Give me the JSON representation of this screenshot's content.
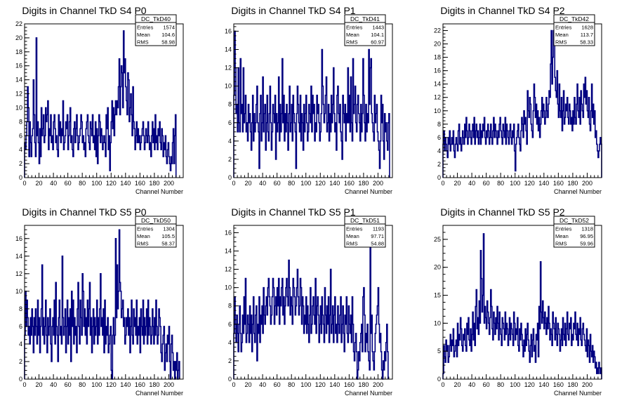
{
  "chart_data": [
    {
      "type": "histogram",
      "title": "Digits in Channel TkD S4 P0",
      "xlabel": "Channel Number",
      "xlim": [
        0,
        220
      ],
      "ylim": [
        0,
        22
      ],
      "xticks": [
        0,
        20,
        40,
        60,
        80,
        100,
        120,
        140,
        160,
        180,
        200
      ],
      "yticks": [
        0,
        2,
        4,
        6,
        8,
        10,
        12,
        14,
        16,
        18,
        20,
        22
      ],
      "stats": {
        "name": "DC_TkD40",
        "entries": "1574",
        "mean": "104.6",
        "rms": "58.98"
      },
      "values": [
        5,
        4,
        6,
        8,
        13,
        10,
        3,
        8,
        5,
        3,
        6,
        7,
        14,
        9,
        5,
        3,
        20,
        6,
        8,
        5,
        2,
        7,
        3,
        10,
        6,
        7,
        9,
        5,
        6,
        10,
        8,
        9,
        11,
        4,
        7,
        6,
        9,
        5,
        6,
        4,
        8,
        9,
        7,
        5,
        6,
        4,
        3,
        9,
        6,
        8,
        5,
        7,
        6,
        11,
        4,
        5,
        6,
        8,
        7,
        9,
        4,
        6,
        8,
        10,
        5,
        6,
        4,
        3,
        7,
        8,
        5,
        7,
        9,
        6,
        4,
        5,
        6,
        7,
        9,
        8,
        5,
        6,
        4,
        5,
        3,
        7,
        8,
        9,
        6,
        5,
        4,
        8,
        7,
        6,
        9,
        5,
        6,
        4,
        8,
        3,
        7,
        2,
        6,
        9,
        8,
        5,
        7,
        6,
        4,
        5,
        6,
        5,
        3,
        9,
        7,
        10,
        4,
        6,
        1,
        5,
        8,
        11,
        7,
        10,
        6,
        9,
        11,
        9,
        11,
        10,
        13,
        17,
        9,
        13,
        16,
        15,
        10,
        21,
        15,
        17,
        13,
        11,
        9,
        15,
        14,
        8,
        10,
        12,
        9,
        6,
        13,
        8,
        7,
        4,
        6,
        8,
        5,
        7,
        5,
        6,
        4,
        5,
        6,
        7,
        8,
        6,
        4,
        5,
        7,
        6,
        5,
        8,
        6,
        4,
        5,
        3,
        6,
        8,
        5,
        7,
        4,
        9,
        5,
        6,
        4,
        7,
        6,
        8,
        5,
        4,
        7,
        6,
        3,
        5,
        4,
        6,
        3,
        2,
        4,
        5,
        3,
        2,
        1,
        3,
        2,
        5,
        7,
        2,
        6,
        9
      ]
    },
    {
      "type": "histogram",
      "title": "Digits in Channel TkD S4 P1",
      "xlabel": "Channel Number",
      "xlim": [
        0,
        220
      ],
      "ylim": [
        0,
        16.8
      ],
      "xticks": [
        0,
        20,
        40,
        60,
        80,
        100,
        120,
        140,
        160,
        180,
        200
      ],
      "yticks": [
        0,
        2,
        4,
        6,
        8,
        10,
        12,
        14,
        16
      ],
      "stats": {
        "name": "DC_TkD41",
        "entries": "1443",
        "mean": "104.1",
        "rms": "60.97"
      },
      "values": [
        9,
        16,
        12,
        7,
        8,
        5,
        12,
        6,
        5,
        13,
        7,
        8,
        5,
        12,
        6,
        7,
        9,
        5,
        6,
        4,
        8,
        6,
        7,
        5,
        3,
        6,
        9,
        4,
        7,
        5,
        6,
        8,
        10,
        6,
        5,
        1,
        7,
        9,
        4,
        6,
        11,
        5,
        7,
        8,
        3,
        6,
        9,
        5,
        4,
        7,
        10,
        6,
        3,
        5,
        8,
        7,
        6,
        9,
        2,
        7,
        5,
        6,
        11,
        4,
        8,
        5,
        7,
        13,
        6,
        9,
        4,
        7,
        5,
        8,
        6,
        3,
        7,
        10,
        5,
        6,
        8,
        4,
        9,
        7,
        6,
        5,
        1,
        7,
        10,
        8,
        6,
        5,
        9,
        4,
        7,
        6,
        3,
        8,
        5,
        7,
        9,
        6,
        4,
        5,
        8,
        7,
        6,
        10,
        5,
        9,
        7,
        8,
        4,
        6,
        5,
        9,
        7,
        8,
        6,
        4,
        5,
        7,
        14,
        10,
        8,
        6,
        7,
        9,
        11,
        5,
        6,
        8,
        4,
        7,
        5,
        9,
        6,
        8,
        12,
        7,
        5,
        6,
        3,
        9,
        10,
        7,
        6,
        8,
        5,
        4,
        2,
        9,
        7,
        6,
        8,
        4,
        7,
        6,
        12,
        6,
        9,
        5,
        11,
        6,
        4,
        13,
        7,
        8,
        10,
        6,
        5,
        8,
        9,
        7,
        6,
        4,
        8,
        5,
        7,
        13,
        9,
        6,
        4,
        8,
        5,
        7,
        6,
        14,
        8,
        12,
        13,
        7,
        6,
        5,
        4,
        9,
        6,
        7,
        8,
        5,
        4,
        3,
        1,
        4,
        9,
        6,
        8,
        4,
        2,
        7,
        5,
        6,
        4,
        3,
        6,
        7
      ]
    },
    {
      "type": "histogram",
      "title": "Digits in Channel TkD S4 P2",
      "xlabel": "Channel Number",
      "xlim": [
        0,
        220
      ],
      "ylim": [
        0,
        23
      ],
      "xticks": [
        0,
        20,
        40,
        60,
        80,
        100,
        120,
        140,
        160,
        180,
        200
      ],
      "yticks": [
        0,
        2,
        4,
        6,
        8,
        10,
        12,
        14,
        16,
        18,
        20,
        22
      ],
      "stats": {
        "name": "DC_TkD42",
        "entries": "1628",
        "mean": "113.7",
        "rms": "58.33"
      },
      "values": [
        5,
        7,
        4,
        6,
        5,
        4,
        3,
        6,
        5,
        7,
        4,
        5,
        6,
        5,
        7,
        4,
        3,
        5,
        6,
        5,
        4,
        7,
        8,
        5,
        6,
        4,
        5,
        7,
        6,
        5,
        8,
        6,
        9,
        7,
        5,
        6,
        8,
        7,
        6,
        5,
        7,
        8,
        6,
        9,
        5,
        7,
        8,
        6,
        7,
        5,
        6,
        8,
        5,
        7,
        6,
        8,
        7,
        9,
        6,
        5,
        7,
        6,
        8,
        7,
        5,
        6,
        8,
        6,
        5,
        7,
        9,
        6,
        8,
        7,
        6,
        5,
        7,
        6,
        8,
        9,
        7,
        6,
        5,
        8,
        7,
        6,
        9,
        5,
        8,
        7,
        6,
        5,
        7,
        8,
        6,
        5,
        7,
        6,
        8,
        4,
        1,
        5,
        6,
        7,
        8,
        6,
        5,
        4,
        7,
        9,
        8,
        6,
        10,
        8,
        9,
        7,
        5,
        13,
        10,
        9,
        12,
        11,
        8,
        7,
        6,
        10,
        14,
        12,
        9,
        11,
        8,
        10,
        7,
        9,
        6,
        8,
        10,
        12,
        9,
        11,
        10,
        8,
        9,
        12,
        10,
        9,
        11,
        13,
        12,
        17,
        22,
        14,
        18,
        22,
        20,
        15,
        13,
        12,
        16,
        11,
        9,
        14,
        10,
        9,
        12,
        7,
        10,
        13,
        8,
        9,
        11,
        10,
        12,
        9,
        8,
        11,
        10,
        8,
        9,
        7,
        10,
        8,
        12,
        9,
        8,
        11,
        14,
        10,
        9,
        12,
        8,
        13,
        11,
        10,
        9,
        14,
        12,
        15,
        11,
        13,
        10,
        9,
        12,
        8,
        7,
        10,
        14,
        9,
        11,
        8,
        10,
        6,
        7,
        5,
        4,
        3,
        4,
        5,
        6,
        5
      ]
    },
    {
      "type": "histogram",
      "title": "Digits in Channel TkD S5 P0",
      "xlabel": "Channel Number",
      "xlim": [
        0,
        220
      ],
      "ylim": [
        0,
        17.5
      ],
      "xticks": [
        0,
        20,
        40,
        60,
        80,
        100,
        120,
        140,
        160,
        180,
        200
      ],
      "yticks": [
        0,
        2,
        4,
        6,
        8,
        10,
        12,
        14,
        16
      ],
      "stats": {
        "name": "DC_TkD50",
        "entries": "1304",
        "mean": "105.5",
        "rms": "58.37"
      },
      "values": [
        5,
        10,
        6,
        9,
        7,
        5,
        6,
        4,
        7,
        5,
        8,
        6,
        3,
        7,
        5,
        8,
        6,
        4,
        9,
        5,
        7,
        3,
        6,
        8,
        13,
        5,
        7,
        4,
        6,
        9,
        5,
        3,
        7,
        5,
        6,
        8,
        4,
        2,
        6,
        7,
        5,
        9,
        4,
        11,
        6,
        5,
        2,
        7,
        9,
        5,
        6,
        4,
        14,
        7,
        5,
        6,
        8,
        3,
        6,
        9,
        4,
        7,
        5,
        8,
        2,
        10,
        6,
        9,
        4,
        7,
        5,
        6,
        3,
        8,
        11,
        6,
        4,
        9,
        7,
        5,
        12,
        10,
        6,
        8,
        5,
        7,
        4,
        9,
        6,
        8,
        11,
        5,
        7,
        3,
        6,
        8,
        4,
        7,
        5,
        6,
        9,
        4,
        7,
        5,
        8,
        12,
        6,
        7,
        5,
        8,
        3,
        9,
        4,
        6,
        5,
        7,
        3,
        4,
        5,
        6,
        1,
        0,
        5,
        7,
        4,
        5,
        16,
        7,
        13,
        8,
        10,
        17,
        11,
        10,
        7,
        8,
        9,
        6,
        7,
        4,
        5,
        7,
        6,
        8,
        5,
        7,
        3,
        6,
        9,
        5,
        4,
        8,
        6,
        7,
        5,
        9,
        4,
        6,
        5,
        7,
        3,
        8,
        6,
        5,
        9,
        4,
        7,
        5,
        6,
        8,
        4,
        9,
        5,
        7,
        6,
        4,
        5,
        8,
        6,
        4,
        7,
        5,
        9,
        6,
        4,
        5,
        8,
        7,
        6,
        3,
        2,
        4,
        5,
        6,
        1,
        3,
        4,
        2,
        5,
        4,
        6,
        2,
        0,
        4,
        5,
        3,
        1,
        2,
        0,
        2,
        1,
        3,
        0,
        1,
        2
      ]
    },
    {
      "type": "histogram",
      "title": "Digits in Channel TkD S5 P1",
      "xlabel": "Channel Number",
      "xlim": [
        0,
        220
      ],
      "ylim": [
        0,
        16.8
      ],
      "xticks": [
        0,
        20,
        40,
        60,
        80,
        100,
        120,
        140,
        160,
        180,
        200
      ],
      "yticks": [
        0,
        2,
        4,
        6,
        8,
        10,
        12,
        14,
        16
      ],
      "stats": {
        "name": "DC_TkD51",
        "entries": "1193",
        "mean": "97.71",
        "rms": "54.88"
      },
      "values": [
        5,
        9,
        6,
        4,
        7,
        5,
        3,
        6,
        8,
        5,
        3,
        4,
        7,
        5,
        9,
        6,
        11,
        4,
        5,
        7,
        6,
        4,
        8,
        5,
        7,
        3,
        6,
        9,
        5,
        4,
        7,
        8,
        2,
        6,
        5,
        9,
        4,
        7,
        6,
        8,
        5,
        10,
        7,
        6,
        8,
        9,
        7,
        10,
        11,
        9,
        8,
        6,
        7,
        9,
        11,
        10,
        6,
        8,
        9,
        7,
        10,
        8,
        11,
        6,
        9,
        8,
        10,
        11,
        7,
        9,
        6,
        8,
        10,
        11,
        9,
        8,
        13,
        10,
        7,
        9,
        8,
        6,
        11,
        10,
        9,
        7,
        8,
        10,
        12,
        9,
        7,
        8,
        11,
        10,
        6,
        9,
        8,
        5,
        7,
        6,
        9,
        5,
        8,
        6,
        4,
        7,
        10,
        5,
        6,
        8,
        9,
        7,
        6,
        11,
        5,
        8,
        9,
        7,
        4,
        6,
        8,
        5,
        9,
        7,
        6,
        4,
        10,
        7,
        5,
        8,
        6,
        9,
        4,
        7,
        12,
        5,
        6,
        8,
        4,
        7,
        9,
        5,
        6,
        4,
        8,
        6,
        5,
        7,
        9,
        4,
        6,
        8,
        5,
        3,
        7,
        6,
        9,
        5,
        4,
        8,
        6,
        5,
        7,
        4,
        9,
        6,
        3,
        2,
        4,
        5,
        3,
        0,
        1,
        3,
        2,
        4,
        5,
        6,
        3,
        9,
        10,
        7,
        3,
        5,
        4,
        6,
        3,
        2,
        1,
        15,
        5,
        7,
        3,
        2,
        1,
        3,
        5,
        6,
        7,
        8,
        10,
        6,
        4,
        5,
        3,
        1,
        0,
        2,
        1,
        3,
        2,
        4,
        6,
        3
      ]
    },
    {
      "type": "histogram",
      "title": "Digits in Channel TkD S5 P2",
      "xlabel": "Channel Number",
      "xlim": [
        0,
        220
      ],
      "ylim": [
        0,
        27.5
      ],
      "xticks": [
        0,
        20,
        40,
        60,
        80,
        100,
        120,
        140,
        160,
        180,
        200
      ],
      "yticks": [
        0,
        5,
        10,
        15,
        20,
        25
      ],
      "stats": {
        "name": "DC_TkD52",
        "entries": "1318",
        "mean": "96.95",
        "rms": "59.96"
      },
      "values": [
        1,
        6,
        4,
        3,
        7,
        5,
        6,
        3,
        4,
        6,
        8,
        5,
        7,
        6,
        9,
        4,
        5,
        6,
        7,
        4,
        10,
        6,
        8,
        7,
        11,
        9,
        6,
        5,
        8,
        7,
        9,
        6,
        5,
        10,
        8,
        11,
        7,
        6,
        9,
        5,
        8,
        12,
        7,
        10,
        6,
        13,
        16,
        9,
        11,
        8,
        14,
        10,
        23,
        18,
        12,
        15,
        26,
        10,
        13,
        11,
        9,
        14,
        12,
        10,
        8,
        11,
        16,
        13,
        9,
        7,
        12,
        10,
        8,
        11,
        9,
        13,
        10,
        7,
        12,
        9,
        8,
        6,
        11,
        10,
        9,
        7,
        12,
        8,
        10,
        9,
        6,
        8,
        11,
        7,
        10,
        9,
        8,
        6,
        12,
        10,
        7,
        9,
        8,
        11,
        6,
        5,
        9,
        7,
        10,
        8,
        6,
        4,
        7,
        5,
        9,
        6,
        8,
        10,
        7,
        5,
        3,
        6,
        8,
        4,
        7,
        9,
        5,
        6,
        3,
        8,
        7,
        10,
        4,
        13,
        9,
        21,
        12,
        10,
        14,
        11,
        9,
        12,
        10,
        8,
        11,
        9,
        13,
        10,
        7,
        9,
        8,
        6,
        12,
        10,
        9,
        7,
        11,
        8,
        6,
        10,
        9,
        8,
        5,
        7,
        9,
        6,
        11,
        8,
        7,
        10,
        6,
        9,
        12,
        8,
        7,
        10,
        9,
        11,
        6,
        8,
        7,
        10,
        9,
        12,
        8,
        7,
        10,
        6,
        9,
        8,
        11,
        7,
        6,
        9,
        10,
        8,
        7,
        6,
        5,
        9,
        4,
        7,
        6,
        3,
        8,
        5,
        4,
        6,
        3,
        5,
        4,
        2,
        3,
        1,
        2,
        1,
        3,
        2,
        1,
        2
      ]
    }
  ],
  "stat_labels": {
    "entries": "Entries",
    "mean": "Mean",
    "rms": "RMS"
  },
  "colors": {
    "line": "#000080",
    "axis": "#000000",
    "background": "#ffffff"
  }
}
